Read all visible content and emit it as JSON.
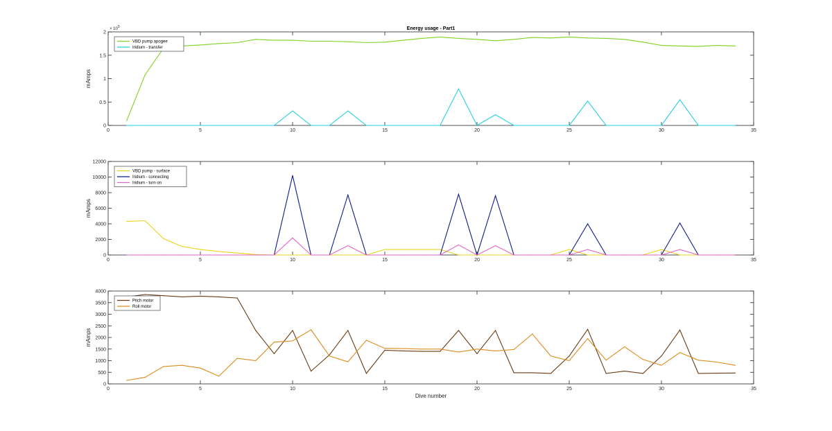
{
  "chart_data": [
    {
      "type": "line",
      "title": "Energy usage - Part1",
      "xlabel": "",
      "ylabel": "mAmps",
      "xlim": [
        0,
        35
      ],
      "ylim": [
        0,
        200000
      ],
      "xticks": [
        0,
        5,
        10,
        15,
        20,
        25,
        30,
        35
      ],
      "yticks": [
        0,
        50000,
        100000,
        150000,
        200000
      ],
      "ytick_labels": [
        "0",
        "0.5",
        "1",
        "1.5",
        "2"
      ],
      "y_exponent": "× 10",
      "y_exponent_power": "5",
      "legend_position": "top-left",
      "x": [
        1,
        2,
        3,
        4,
        5,
        6,
        7,
        8,
        9,
        10,
        11,
        12,
        13,
        14,
        15,
        16,
        17,
        18,
        19,
        20,
        21,
        22,
        23,
        24,
        25,
        26,
        27,
        28,
        29,
        30,
        31,
        32,
        33,
        34
      ],
      "series": [
        {
          "name": "VBD pump apogee",
          "color": "#7ed321",
          "values": [
            10000,
            108000,
            165000,
            170000,
            172000,
            175000,
            177000,
            184000,
            182000,
            182000,
            180000,
            180000,
            179000,
            177000,
            178000,
            182000,
            186000,
            189000,
            186000,
            184000,
            181000,
            184000,
            188000,
            187000,
            189000,
            187000,
            186000,
            184000,
            178000,
            171000,
            170000,
            169000,
            171000,
            170000
          ]
        },
        {
          "name": "Iridium - transfer",
          "color": "#1fd1e0",
          "values": [
            0,
            0,
            0,
            0,
            0,
            0,
            0,
            0,
            0,
            31000,
            0,
            0,
            31000,
            0,
            0,
            0,
            0,
            0,
            78000,
            0,
            23000,
            0,
            0,
            0,
            0,
            52000,
            0,
            0,
            0,
            0,
            55000,
            0,
            0,
            0
          ]
        }
      ]
    },
    {
      "type": "line",
      "title": "",
      "xlabel": "",
      "ylabel": "mAmps",
      "xlim": [
        0,
        35
      ],
      "ylim": [
        0,
        12000
      ],
      "xticks": [
        0,
        5,
        10,
        15,
        20,
        25,
        30,
        35
      ],
      "yticks": [
        0,
        2000,
        4000,
        6000,
        8000,
        10000,
        12000
      ],
      "ytick_labels": [
        "0",
        "2000",
        "4000",
        "6000",
        "8000",
        "10000",
        "12000"
      ],
      "legend_position": "top-left",
      "x": [
        1,
        2,
        3,
        4,
        5,
        6,
        7,
        8,
        9,
        10,
        11,
        12,
        13,
        14,
        15,
        16,
        17,
        18,
        19,
        20,
        21,
        22,
        23,
        24,
        25,
        26,
        27,
        28,
        29,
        30,
        31,
        32,
        33,
        34
      ],
      "series": [
        {
          "name": "VBD pump - surface",
          "color": "#e8d31a",
          "values": [
            4300,
            4400,
            2100,
            1100,
            700,
            450,
            250,
            50,
            0,
            0,
            0,
            0,
            0,
            0,
            700,
            700,
            700,
            700,
            0,
            0,
            0,
            0,
            0,
            0,
            700,
            0,
            0,
            0,
            0,
            700,
            0,
            0,
            0,
            0
          ]
        },
        {
          "name": "Iridium - connecting",
          "color": "#0a1a8c",
          "values": [
            0,
            0,
            0,
            0,
            0,
            0,
            0,
            0,
            0,
            10200,
            0,
            0,
            7700,
            0,
            0,
            0,
            0,
            0,
            7800,
            0,
            7600,
            0,
            0,
            0,
            0,
            4000,
            0,
            0,
            0,
            0,
            4100,
            0,
            0,
            0
          ]
        },
        {
          "name": "Iridium - turn on",
          "color": "#e066c8",
          "values": [
            0,
            0,
            0,
            0,
            0,
            0,
            0,
            0,
            0,
            2200,
            0,
            0,
            1200,
            0,
            0,
            0,
            0,
            0,
            1300,
            0,
            1200,
            0,
            0,
            0,
            0,
            700,
            0,
            0,
            0,
            0,
            700,
            0,
            0,
            0
          ]
        }
      ]
    },
    {
      "type": "line",
      "title": "",
      "xlabel": "Dive number",
      "ylabel": "mAmps",
      "xlim": [
        0,
        35
      ],
      "ylim": [
        0,
        4000
      ],
      "xticks": [
        0,
        5,
        10,
        15,
        20,
        25,
        30,
        35
      ],
      "yticks": [
        0,
        500,
        1000,
        1500,
        2000,
        2500,
        3000,
        3500,
        4000
      ],
      "ytick_labels": [
        "0",
        "500",
        "1000",
        "1500",
        "2000",
        "2500",
        "3000",
        "3500",
        "4000"
      ],
      "legend_position": "top-left",
      "x": [
        1,
        2,
        3,
        4,
        5,
        6,
        7,
        8,
        9,
        10,
        11,
        12,
        13,
        14,
        15,
        16,
        17,
        18,
        19,
        20,
        21,
        22,
        23,
        24,
        25,
        26,
        27,
        28,
        29,
        30,
        31,
        32,
        33,
        34
      ],
      "series": [
        {
          "name": "Pitch motor",
          "color": "#6b3a12",
          "values": [
            3750,
            3850,
            3800,
            3750,
            3780,
            3750,
            3700,
            2300,
            1300,
            2300,
            550,
            1250,
            2300,
            450,
            1450,
            1420,
            1400,
            1400,
            2300,
            1300,
            2300,
            480,
            480,
            450,
            1200,
            2350,
            450,
            550,
            450,
            1200,
            2320,
            450,
            460,
            470
          ]
        },
        {
          "name": "Roll motor",
          "color": "#e08a1a",
          "values": [
            150,
            280,
            750,
            800,
            680,
            330,
            1100,
            1000,
            1800,
            1850,
            2330,
            1200,
            950,
            1880,
            1530,
            1520,
            1500,
            1500,
            1370,
            1500,
            1420,
            1480,
            2150,
            1200,
            1000,
            1950,
            1020,
            1600,
            1050,
            800,
            1350,
            1020,
            940,
            800
          ]
        }
      ]
    }
  ]
}
